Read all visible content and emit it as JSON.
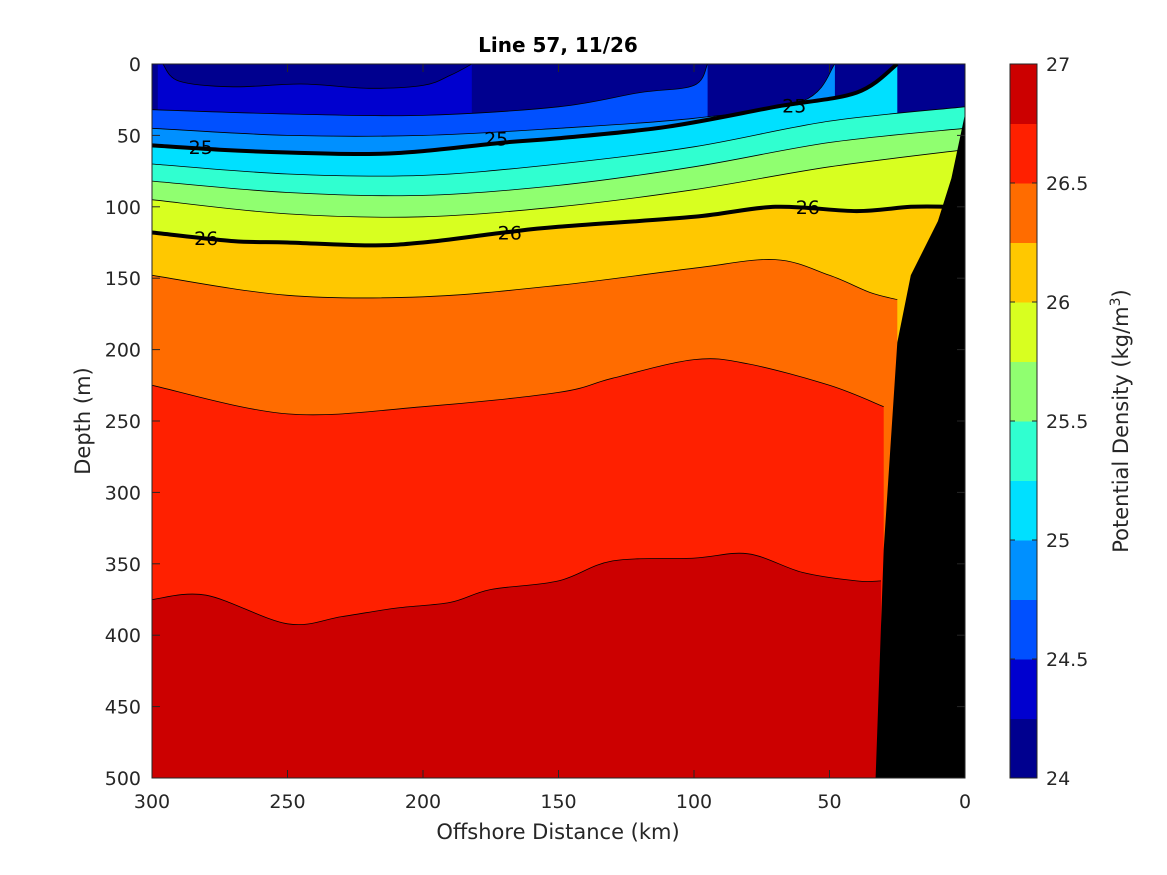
{
  "chart_data": {
    "type": "heatmap",
    "subtype": "filled-contour",
    "title": "Line 57, 11/26",
    "xlabel": "Offshore Distance (km)",
    "ylabel": "Depth (m)",
    "colorbar_label": "Potential Density (kg/m3)",
    "xlim": [
      300,
      0
    ],
    "x_reversed": true,
    "ylim": [
      0,
      500
    ],
    "y_reversed": true,
    "x_ticks": [
      300,
      250,
      200,
      150,
      100,
      50,
      0
    ],
    "y_ticks": [
      0,
      50,
      100,
      150,
      200,
      250,
      300,
      350,
      400,
      450,
      500
    ],
    "colorbar_range": [
      24,
      27
    ],
    "colorbar_ticks": [
      24,
      24.5,
      25,
      25.5,
      26,
      26.5,
      27
    ],
    "contour_interval": 0.25,
    "contour_levels": [
      24.25,
      24.5,
      24.75,
      25,
      25.25,
      25.5,
      25.75,
      26,
      26.25,
      26.5,
      26.75
    ],
    "level_colors": [
      "#00008f",
      "#0000cf",
      "#0050ff",
      "#0090ff",
      "#00e0ff",
      "#30ffd0",
      "#90ff70",
      "#d8ff20",
      "#ffc800",
      "#ff6c00",
      "#ff2000",
      "#cc0000"
    ],
    "bathymetry_color": "#000000",
    "isopycnals": [
      {
        "level": 24.25,
        "points": [
          [
            296,
            0
          ],
          [
            290,
            12
          ],
          [
            270,
            16
          ],
          [
            245,
            14
          ],
          [
            220,
            17
          ],
          [
            200,
            15
          ],
          [
            190,
            8
          ],
          [
            182,
            0
          ]
        ],
        "bold": false
      },
      {
        "level": 24.5,
        "points": [
          [
            300,
            32
          ],
          [
            250,
            35
          ],
          [
            200,
            36
          ],
          [
            150,
            30
          ],
          [
            120,
            20
          ],
          [
            100,
            15
          ],
          [
            95,
            0
          ]
        ],
        "bold": false
      },
      {
        "level": 24.75,
        "points": [
          [
            300,
            45
          ],
          [
            250,
            50
          ],
          [
            200,
            50
          ],
          [
            150,
            45
          ],
          [
            100,
            38
          ],
          [
            60,
            26
          ],
          [
            48,
            0
          ]
        ],
        "bold": false
      },
      {
        "level": 25,
        "points": [
          [
            300,
            57
          ],
          [
            275,
            60
          ],
          [
            250,
            62
          ],
          [
            220,
            63
          ],
          [
            200,
            61
          ],
          [
            170,
            55
          ],
          [
            150,
            52
          ],
          [
            110,
            44
          ],
          [
            70,
            30
          ],
          [
            40,
            20
          ],
          [
            25,
            0
          ]
        ],
        "bold": true
      },
      {
        "level": 25.25,
        "points": [
          [
            300,
            70
          ],
          [
            250,
            77
          ],
          [
            200,
            78
          ],
          [
            150,
            70
          ],
          [
            100,
            58
          ],
          [
            50,
            40
          ],
          [
            0,
            30
          ]
        ],
        "bold": false
      },
      {
        "level": 25.5,
        "points": [
          [
            300,
            82
          ],
          [
            250,
            90
          ],
          [
            200,
            92
          ],
          [
            150,
            85
          ],
          [
            100,
            72
          ],
          [
            50,
            55
          ],
          [
            0,
            45
          ]
        ],
        "bold": false
      },
      {
        "level": 25.75,
        "points": [
          [
            300,
            95
          ],
          [
            250,
            105
          ],
          [
            200,
            107
          ],
          [
            150,
            100
          ],
          [
            100,
            88
          ],
          [
            50,
            72
          ],
          [
            0,
            60
          ]
        ],
        "bold": false
      },
      {
        "level": 26,
        "points": [
          [
            300,
            118
          ],
          [
            270,
            124
          ],
          [
            250,
            125
          ],
          [
            220,
            127
          ],
          [
            200,
            125
          ],
          [
            170,
            118
          ],
          [
            150,
            114
          ],
          [
            100,
            107
          ],
          [
            70,
            100
          ],
          [
            40,
            103
          ],
          [
            20,
            100
          ],
          [
            5,
            100
          ]
        ],
        "bold": true
      },
      {
        "level": 26.25,
        "points": [
          [
            300,
            148
          ],
          [
            250,
            162
          ],
          [
            200,
            163
          ],
          [
            150,
            155
          ],
          [
            100,
            143
          ],
          [
            70,
            137
          ],
          [
            50,
            148
          ],
          [
            35,
            160
          ],
          [
            25,
            165
          ]
        ],
        "bold": false
      },
      {
        "level": 26.5,
        "points": [
          [
            300,
            225
          ],
          [
            250,
            245
          ],
          [
            200,
            240
          ],
          [
            150,
            230
          ],
          [
            130,
            220
          ],
          [
            100,
            207
          ],
          [
            80,
            210
          ],
          [
            50,
            225
          ],
          [
            30,
            240
          ]
        ],
        "bold": false
      },
      {
        "level": 26.75,
        "points": [
          [
            300,
            375
          ],
          [
            280,
            372
          ],
          [
            250,
            392
          ],
          [
            230,
            387
          ],
          [
            210,
            381
          ],
          [
            190,
            377
          ],
          [
            175,
            368
          ],
          [
            150,
            362
          ],
          [
            130,
            348
          ],
          [
            100,
            346
          ],
          [
            80,
            343
          ],
          [
            60,
            356
          ],
          [
            40,
            362
          ],
          [
            31,
            362
          ]
        ],
        "bold": false
      }
    ],
    "contour_labels": [
      {
        "text": "25",
        "x": 282,
        "y": 58
      },
      {
        "text": "25",
        "x": 173,
        "y": 52
      },
      {
        "text": "25",
        "x": 63,
        "y": 29
      },
      {
        "text": "26",
        "x": 280,
        "y": 122
      },
      {
        "text": "26",
        "x": 168,
        "y": 118
      },
      {
        "text": "26",
        "x": 58,
        "y": 100
      }
    ],
    "bathymetry": [
      [
        33,
        500
      ],
      [
        30,
        340
      ],
      [
        25,
        195
      ],
      [
        20,
        148
      ],
      [
        10,
        110
      ],
      [
        5,
        80
      ],
      [
        0,
        35
      ],
      [
        0,
        500
      ]
    ]
  }
}
